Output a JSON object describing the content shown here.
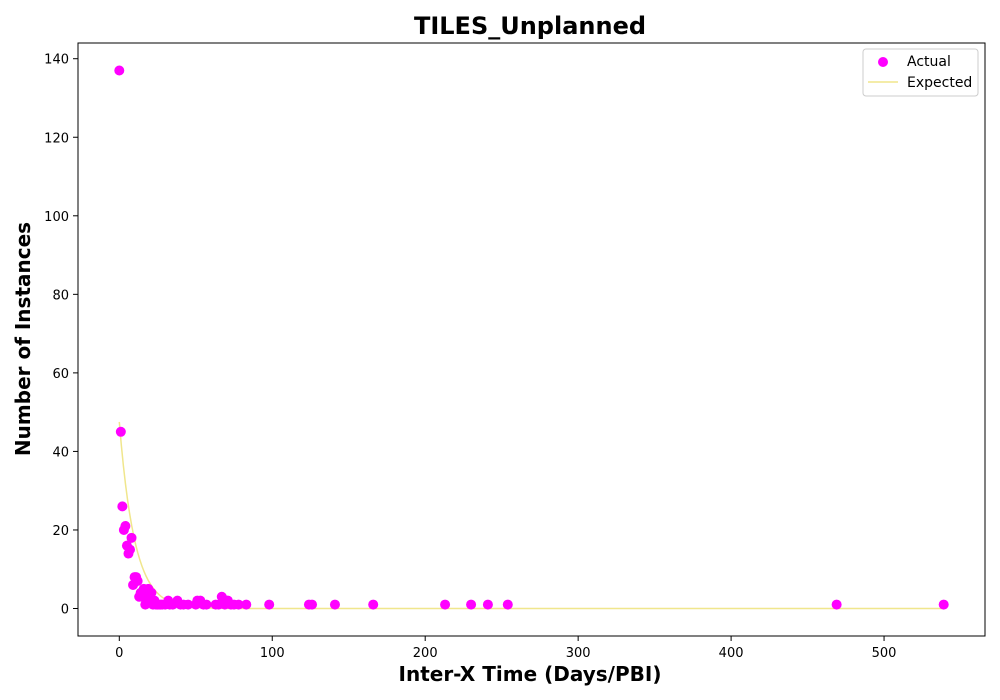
{
  "chart_data": {
    "type": "scatter",
    "title": "TILES_Unplanned",
    "xlabel": "Inter-X Time (Days/PBI)",
    "ylabel": "Number of Instances",
    "xlim": [
      -27,
      566
    ],
    "ylim": [
      -7,
      144
    ],
    "xticks": [
      0,
      100,
      200,
      300,
      400,
      500
    ],
    "yticks": [
      0,
      20,
      40,
      60,
      80,
      100,
      120,
      140
    ],
    "grid": false,
    "legend": {
      "position": "top-right"
    },
    "series": [
      {
        "name": "Actual",
        "kind": "scatter",
        "color": "#ff00ff",
        "points": [
          [
            0,
            137
          ],
          [
            1,
            45
          ],
          [
            2,
            26
          ],
          [
            3,
            20
          ],
          [
            4,
            21
          ],
          [
            5,
            16
          ],
          [
            6,
            14
          ],
          [
            7,
            15
          ],
          [
            8,
            18
          ],
          [
            9,
            6
          ],
          [
            10,
            8
          ],
          [
            11,
            8
          ],
          [
            12,
            7
          ],
          [
            13,
            3
          ],
          [
            14,
            4
          ],
          [
            15,
            3
          ],
          [
            16,
            5
          ],
          [
            17,
            1
          ],
          [
            18,
            3
          ],
          [
            19,
            5
          ],
          [
            20,
            2
          ],
          [
            21,
            4
          ],
          [
            22,
            1
          ],
          [
            23,
            2
          ],
          [
            24,
            1
          ],
          [
            25,
            1
          ],
          [
            26,
            1
          ],
          [
            27,
            1
          ],
          [
            28,
            1
          ],
          [
            30,
            1
          ],
          [
            32,
            2
          ],
          [
            33,
            1
          ],
          [
            35,
            1
          ],
          [
            38,
            2
          ],
          [
            40,
            1
          ],
          [
            42,
            1
          ],
          [
            45,
            1
          ],
          [
            50,
            1
          ],
          [
            51,
            2
          ],
          [
            53,
            2
          ],
          [
            55,
            1
          ],
          [
            57,
            1
          ],
          [
            63,
            1
          ],
          [
            65,
            1
          ],
          [
            67,
            3
          ],
          [
            69,
            1
          ],
          [
            70,
            2
          ],
          [
            71,
            2
          ],
          [
            73,
            1
          ],
          [
            75,
            1
          ],
          [
            78,
            1
          ],
          [
            83,
            1
          ],
          [
            98,
            1
          ],
          [
            124,
            1
          ],
          [
            126,
            1
          ],
          [
            141,
            1
          ],
          [
            166,
            1
          ],
          [
            213,
            1
          ],
          [
            230,
            1
          ],
          [
            241,
            1
          ],
          [
            254,
            1
          ],
          [
            469,
            1
          ],
          [
            539,
            1
          ]
        ]
      },
      {
        "name": "Expected",
        "kind": "line",
        "color": "#f0e68c",
        "model": "exponential",
        "amplitude": 47.5,
        "rate": 0.1,
        "x_range": [
          0,
          539
        ]
      }
    ]
  }
}
